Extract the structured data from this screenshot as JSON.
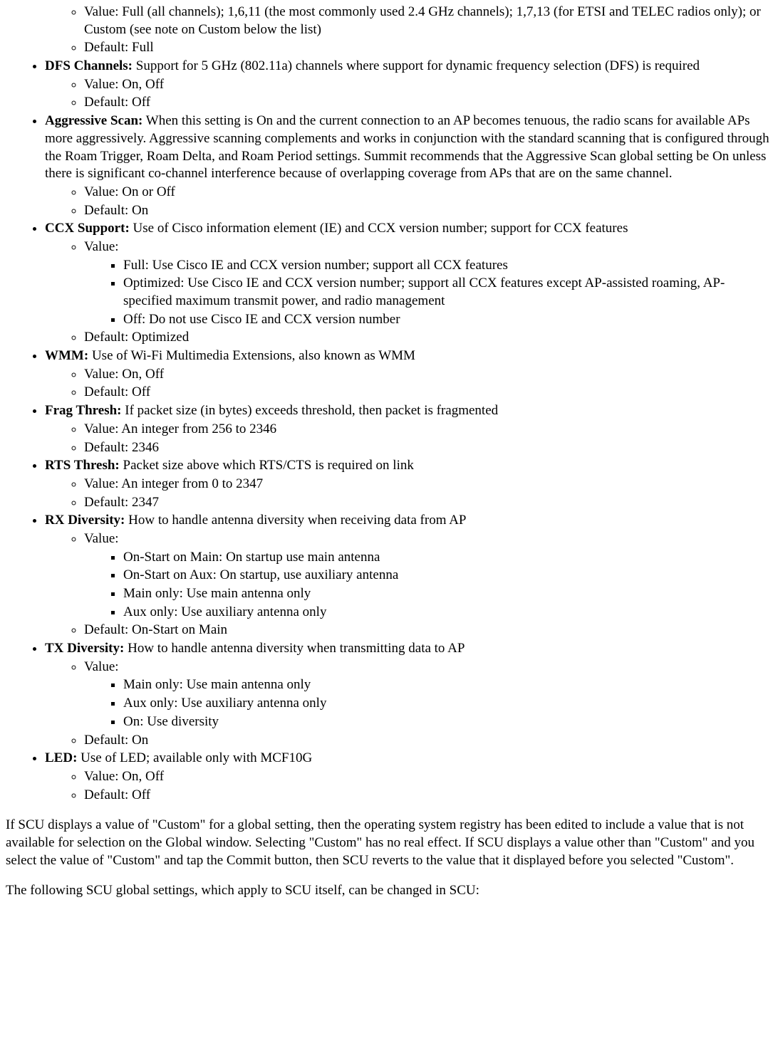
{
  "items": [
    {
      "name": null,
      "desc": null,
      "sub": [
        {
          "label": "Value:",
          "text": "Full (all channels); 1,6,11 (the most commonly used 2.4 GHz channels); 1,7,13 (for ETSI and TELEC radios only); or Custom (see note on Custom below the list)"
        },
        {
          "label": "Default:",
          "text": "Full"
        }
      ]
    },
    {
      "name": "DFS Channels:",
      "desc": "Support for 5 GHz (802.11a) channels where support for dynamic frequency selection (DFS) is required",
      "sub": [
        {
          "label": "Value:",
          "text": "On, Off"
        },
        {
          "label": "Default:",
          "text": "Off"
        }
      ]
    },
    {
      "name": "Aggressive Scan:",
      "desc": "When this setting is On and the current connection to an AP becomes tenuous, the radio scans for available APs more aggressively. Aggressive scanning complements and works in conjunction with the standard scanning that is configured through the Roam Trigger, Roam Delta, and Roam Period settings. Summit recommends that the Aggressive Scan global setting be On unless there is significant co-channel interference because of overlapping coverage from APs that are on the same channel.",
      "sub": [
        {
          "label": "Value:",
          "text": "On or Off"
        },
        {
          "label": "Default:",
          "text": "On"
        }
      ]
    },
    {
      "name": "CCX Support:",
      "desc": "Use of Cisco information element (IE) and CCX version number; support for CCX features",
      "sub": [
        {
          "label": "Value:",
          "text": "",
          "subsub": [
            "Full: Use Cisco IE and CCX version number; support all CCX features",
            "Optimized: Use Cisco IE and CCX version number; support all CCX features except AP-assisted roaming, AP-specified maximum transmit power, and radio management",
            "Off: Do not use Cisco IE and CCX version number"
          ]
        },
        {
          "label": "Default:",
          "text": "Optimized"
        }
      ]
    },
    {
      "name": "WMM:",
      "desc": "Use of Wi-Fi Multimedia Extensions, also known as WMM",
      "sub": [
        {
          "label": "Value:",
          "text": "On, Off"
        },
        {
          "label": "Default:",
          "text": "Off"
        }
      ]
    },
    {
      "name": "Frag Thresh:",
      "desc": "If packet size (in bytes) exceeds threshold, then packet is fragmented",
      "sub": [
        {
          "label": "Value:",
          "text": "An integer from 256 to 2346"
        },
        {
          "label": "Default:",
          "text": "2346"
        }
      ]
    },
    {
      "name": "RTS Thresh:",
      "desc": "Packet size above which RTS/CTS is required on link",
      "sub": [
        {
          "label": "Value:",
          "text": "An integer from 0 to 2347"
        },
        {
          "label": "Default:",
          "text": "2347"
        }
      ]
    },
    {
      "name": "RX Diversity:",
      "desc": "How to handle antenna diversity when receiving data from AP",
      "sub": [
        {
          "label": "Value:",
          "text": "",
          "subsub": [
            "On-Start on Main: On startup use main antenna",
            "On-Start on Aux: On startup, use auxiliary antenna",
            "Main only: Use main antenna only",
            "Aux only: Use auxiliary antenna only"
          ]
        },
        {
          "label": "Default:",
          "text": "On-Start on Main"
        }
      ]
    },
    {
      "name": "TX Diversity:",
      "desc": "How to handle antenna diversity when transmitting data to AP",
      "sub": [
        {
          "label": "Value:",
          "text": "",
          "subsub": [
            "Main only: Use main antenna only",
            "Aux only: Use auxiliary antenna only",
            "On: Use diversity"
          ]
        },
        {
          "label": "Default:",
          "text": "On"
        }
      ]
    },
    {
      "name": "LED:",
      "desc": "Use of LED; available only with MCF10G",
      "sub": [
        {
          "label": "Value:",
          "text": "On, Off"
        },
        {
          "label": "Default:",
          "text": "Off"
        }
      ]
    }
  ],
  "para1": "If SCU displays a value of \"Custom\" for a global setting, then the operating system registry has been edited to include a value that is not available for selection on the Global window. Selecting \"Custom\" has no real effect. If SCU displays a value other than \"Custom\" and you select the value of \"Custom\" and tap the Commit button, then SCU reverts to the value that it displayed before you selected \"Custom\".",
  "para2": "The following SCU global settings, which apply to SCU itself, can be changed in SCU:"
}
